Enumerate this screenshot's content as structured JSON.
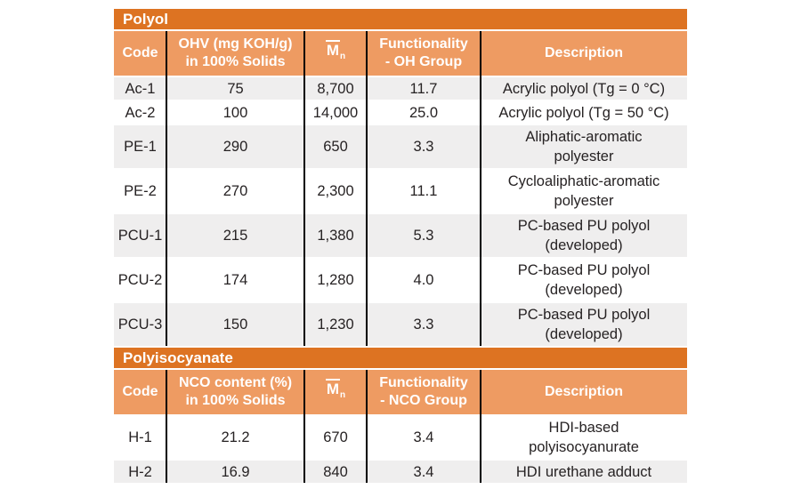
{
  "colors": {
    "section_band_bg": "#dd7322",
    "column_header_bg": "#ee9b62",
    "shaded_row_bg": "#efeeee",
    "plain_row_bg": "#ffffff",
    "column_divider": "#000000",
    "header_text": "#ffffff",
    "body_text": "#262223"
  },
  "table": {
    "sections": [
      {
        "title": "Polyol",
        "header": {
          "code": "Code",
          "metric": "OHV (mg KOH/g)\nin 100% Solids",
          "mn_base": "M",
          "mn_sub": "n",
          "functionality": "Functionality\n- OH Group",
          "description": "Description"
        },
        "rows": [
          {
            "code": "Ac-1",
            "metric": "75",
            "mn": "8,700",
            "functionality": "11.7",
            "description": "Acrylic polyol (Tg = 0 °C)"
          },
          {
            "code": "Ac-2",
            "metric": "100",
            "mn": "14,000",
            "functionality": "25.0",
            "description": "Acrylic polyol (Tg = 50 °C)"
          },
          {
            "code": "PE-1",
            "metric": "290",
            "mn": "650",
            "functionality": "3.3",
            "description": "Aliphatic-aromatic\npolyester"
          },
          {
            "code": "PE-2",
            "metric": "270",
            "mn": "2,300",
            "functionality": "11.1",
            "description": "Cycloaliphatic-aromatic\npolyester"
          },
          {
            "code": "PCU-1",
            "metric": "215",
            "mn": "1,380",
            "functionality": "5.3",
            "description": "PC-based PU polyol\n(developed)"
          },
          {
            "code": "PCU-2",
            "metric": "174",
            "mn": "1,280",
            "functionality": "4.0",
            "description": "PC-based PU polyol\n(developed)"
          },
          {
            "code": "PCU-3",
            "metric": "150",
            "mn": "1,230",
            "functionality": "3.3",
            "description": "PC-based PU polyol\n(developed)"
          }
        ]
      },
      {
        "title": "Polyisocyanate",
        "header": {
          "code": "Code",
          "metric": "NCO content (%)\nin 100% Solids",
          "mn_base": "M",
          "mn_sub": "n",
          "functionality": "Functionality\n- NCO Group",
          "description": "Description"
        },
        "rows": [
          {
            "code": "H-1",
            "metric": "21.2",
            "mn": "670",
            "functionality": "3.4",
            "description": "HDI-based\npolyisocyanurate"
          },
          {
            "code": "H-2",
            "metric": "16.9",
            "mn": "840",
            "functionality": "3.4",
            "description": "HDI urethane adduct"
          }
        ]
      }
    ]
  }
}
